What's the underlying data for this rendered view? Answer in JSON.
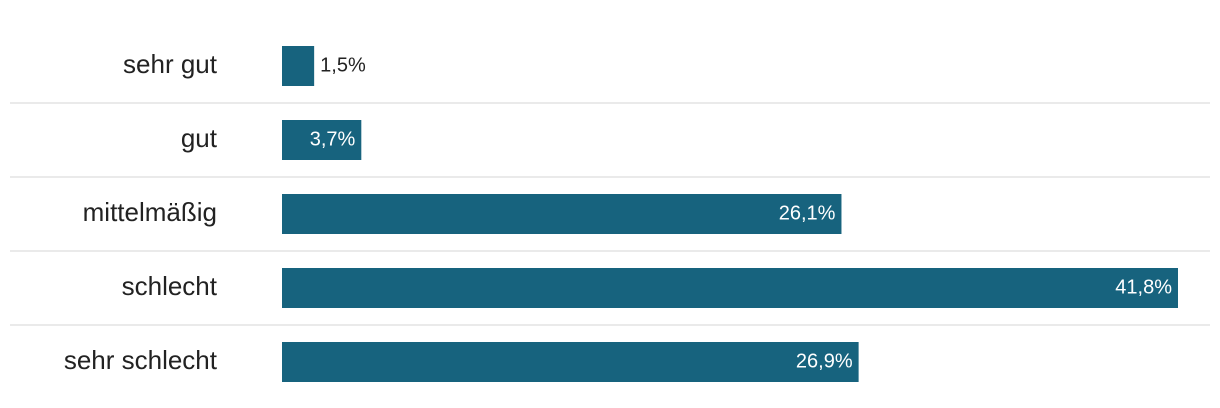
{
  "chart_data": {
    "type": "bar",
    "orientation": "horizontal",
    "categories": [
      "sehr gut",
      "gut",
      "mittelmäßig",
      "schlecht",
      "sehr schlecht"
    ],
    "values": [
      1.5,
      3.7,
      26.1,
      41.8,
      26.9
    ],
    "value_labels": [
      "1,5%",
      "3,7%",
      "26,1%",
      "41,8%",
      "26,9%"
    ],
    "color": "#17637e"
  }
}
